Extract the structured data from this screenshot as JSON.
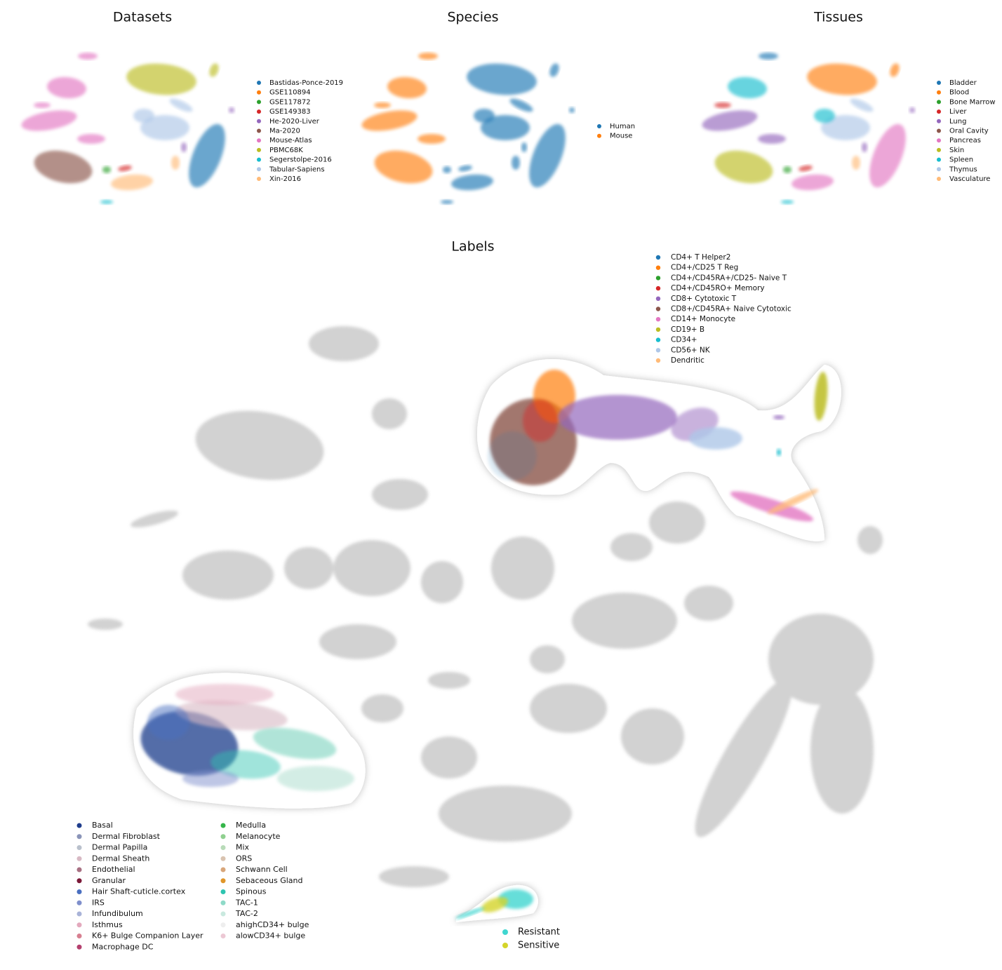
{
  "panels": [
    {
      "title": "Datasets",
      "legend": [
        {
          "label": "Bastidas-Ponce-2019",
          "color": "#1f77b4"
        },
        {
          "label": "GSE110894",
          "color": "#ff7f0e"
        },
        {
          "label": "GSE117872",
          "color": "#2ca02c"
        },
        {
          "label": "GSE149383",
          "color": "#d62728"
        },
        {
          "label": "He-2020-Liver",
          "color": "#9467bd"
        },
        {
          "label": "Ma-2020",
          "color": "#8c564b"
        },
        {
          "label": "Mouse-Atlas",
          "color": "#e377c2"
        },
        {
          "label": "PBMC68K",
          "color": "#bcbd22"
        },
        {
          "label": "Segerstolpe-2016",
          "color": "#17becf"
        },
        {
          "label": "Tabular-Sapiens",
          "color": "#aec7e8"
        },
        {
          "label": "Xin-2016",
          "color": "#ffbb78"
        }
      ]
    },
    {
      "title": "Species",
      "legend": [
        {
          "label": "Human",
          "color": "#1f77b4"
        },
        {
          "label": "Mouse",
          "color": "#ff7f0e"
        }
      ]
    },
    {
      "title": "Tissues",
      "legend": [
        {
          "label": "Bladder",
          "color": "#1f77b4"
        },
        {
          "label": "Blood",
          "color": "#ff7f0e"
        },
        {
          "label": "Bone Marrow",
          "color": "#2ca02c"
        },
        {
          "label": "Liver",
          "color": "#d62728"
        },
        {
          "label": "Lung",
          "color": "#9467bd"
        },
        {
          "label": "Oral Cavity",
          "color": "#8c564b"
        },
        {
          "label": "Pancreas",
          "color": "#e377c2"
        },
        {
          "label": "Skin",
          "color": "#bcbd22"
        },
        {
          "label": "Spleen",
          "color": "#17becf"
        },
        {
          "label": "Thymus",
          "color": "#aec7e8"
        },
        {
          "label": "Vasculature",
          "color": "#ffbb78"
        }
      ]
    }
  ],
  "labels_panel": {
    "title": "Labels",
    "legends": [
      {
        "items": [
          {
            "label": "CD4+ T Helper2",
            "color": "#1f77b4"
          },
          {
            "label": "CD4+/CD25 T Reg",
            "color": "#ff7f0e"
          },
          {
            "label": "CD4+/CD45RA+/CD25- Naive T",
            "color": "#2ca02c"
          },
          {
            "label": "CD4+/CD45RO+ Memory",
            "color": "#d62728"
          },
          {
            "label": "CD8+ Cytotoxic T",
            "color": "#9467bd"
          },
          {
            "label": "CD8+/CD45RA+ Naive Cytotoxic",
            "color": "#8c564b"
          },
          {
            "label": "CD14+ Monocyte",
            "color": "#e377c2"
          },
          {
            "label": "CD19+ B",
            "color": "#bcbd22"
          },
          {
            "label": "CD34+",
            "color": "#17becf"
          },
          {
            "label": "CD56+ NK",
            "color": "#aec7e8"
          },
          {
            "label": "Dendritic",
            "color": "#ffbb78"
          }
        ]
      },
      {
        "items": [
          {
            "label": "Basal",
            "color": "#1f3d8c"
          },
          {
            "label": "Dermal Fibroblast",
            "color": "#8a94b8"
          },
          {
            "label": "Dermal Papilla",
            "color": "#b9c0cc"
          },
          {
            "label": "Dermal Sheath",
            "color": "#d8b9c4"
          },
          {
            "label": "Endothelial",
            "color": "#a87083"
          },
          {
            "label": "Granular",
            "color": "#7a1838"
          },
          {
            "label": "Hair Shaft-cuticle.cortex",
            "color": "#4a6fc0"
          },
          {
            "label": "IRS",
            "color": "#7f8fcc"
          },
          {
            "label": "Infundibulum",
            "color": "#a9b3d8"
          },
          {
            "label": "Isthmus",
            "color": "#e3a9bd"
          },
          {
            "label": "K6+ Bulge Companion Layer",
            "color": "#d77f90"
          },
          {
            "label": "Macrophage DC",
            "color": "#b4406e"
          },
          {
            "label": "Medulla",
            "color": "#35b54a"
          },
          {
            "label": "Melanocyte",
            "color": "#8fd08f"
          },
          {
            "label": "Mix",
            "color": "#b8dbb8"
          },
          {
            "label": "ORS",
            "color": "#d9c3b0"
          },
          {
            "label": "Schwann Cell",
            "color": "#d8a67a"
          },
          {
            "label": "Sebaceous Gland",
            "color": "#e0962a"
          },
          {
            "label": "Spinous",
            "color": "#2ec4b0"
          },
          {
            "label": "TAC-1",
            "color": "#8fdac8"
          },
          {
            "label": "TAC-2",
            "color": "#c9e9df"
          },
          {
            "label": "ahighCD34+ bulge",
            "color": "#eeeeee"
          },
          {
            "label": "alowCD34+ bulge",
            "color": "#ecc8d4"
          }
        ]
      },
      {
        "items": [
          {
            "label": "Resistant",
            "color": "#3fd6d0"
          },
          {
            "label": "Sensitive",
            "color": "#d4d42a"
          }
        ]
      }
    ]
  }
}
